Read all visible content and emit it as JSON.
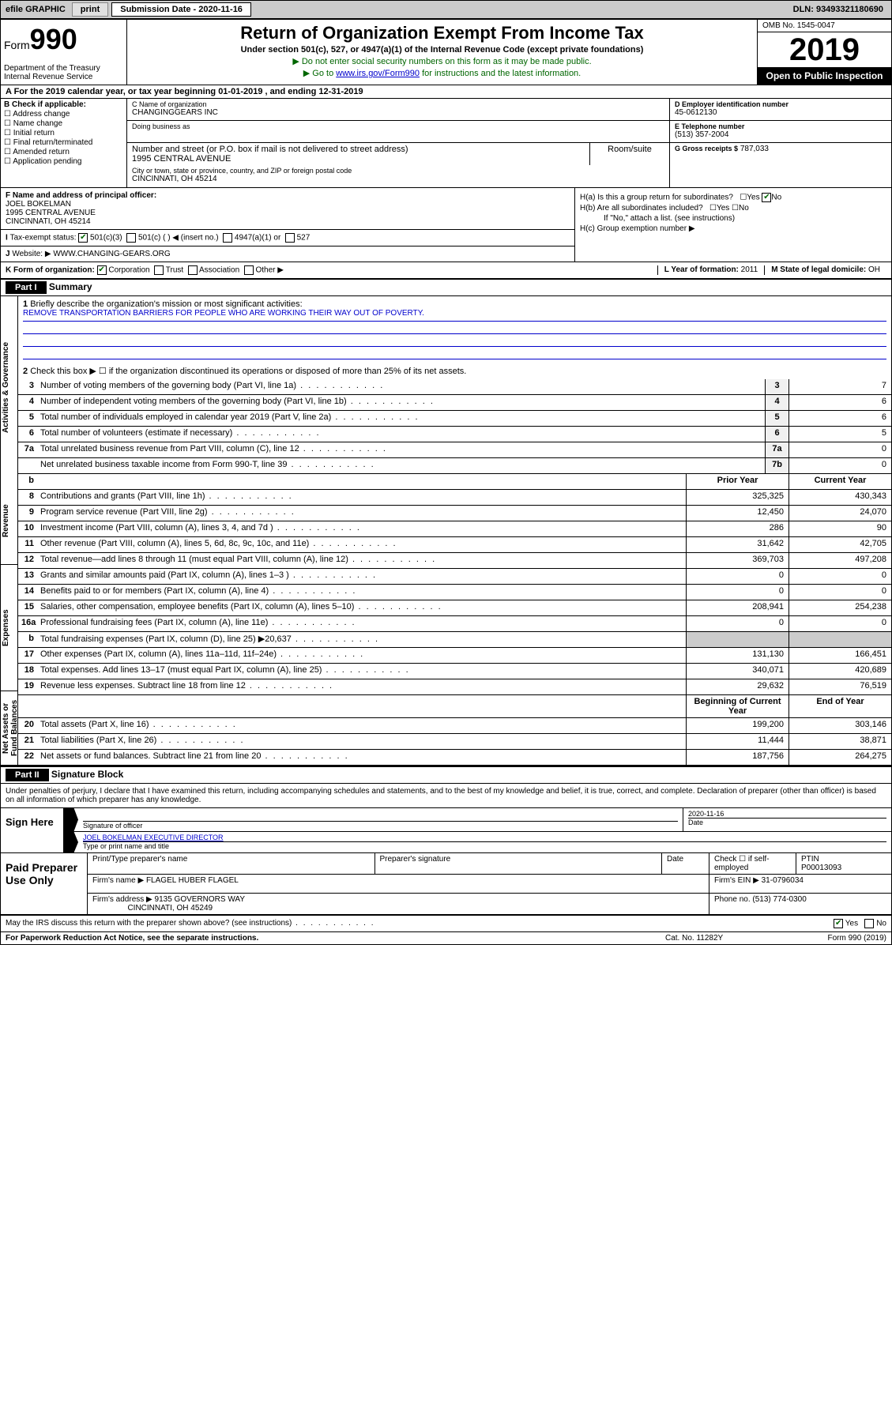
{
  "topbar": {
    "efile": "efile GRAPHIC",
    "print": "print",
    "subdate_lbl": "Submission Date - 2020-11-16",
    "dln": "DLN: 93493321180690"
  },
  "header": {
    "form_word": "Form",
    "form_num": "990",
    "dept": "Department of the Treasury\nInternal Revenue Service",
    "title": "Return of Organization Exempt From Income Tax",
    "sub": "Under section 501(c), 527, or 4947(a)(1) of the Internal Revenue Code (except private foundations)",
    "line1": "▶ Do not enter social security numbers on this form as it may be made public.",
    "line2_pre": "▶ Go to ",
    "line2_link": "www.irs.gov/Form990",
    "line2_post": " for instructions and the latest information.",
    "omb": "OMB No. 1545-0047",
    "year": "2019",
    "open": "Open to Public Inspection"
  },
  "a_line": "A For the 2019 calendar year, or tax year beginning 01-01-2019   , and ending 12-31-2019",
  "b": {
    "lbl": "B Check if applicable:",
    "opts": [
      "Address change",
      "Name change",
      "Initial return",
      "Final return/terminated",
      "Amended return",
      "Application pending"
    ]
  },
  "c": {
    "name_lbl": "C Name of organization",
    "name": "CHANGINGGEARS INC",
    "dba_lbl": "Doing business as",
    "addr_lbl": "Number and street (or P.O. box if mail is not delivered to street address)",
    "addr": "1995 CENTRAL AVENUE",
    "room_lbl": "Room/suite",
    "city_lbl": "City or town, state or province, country, and ZIP or foreign postal code",
    "city": "CINCINNATI, OH  45214"
  },
  "d": {
    "lbl": "D Employer identification number",
    "val": "45-0612130"
  },
  "e": {
    "lbl": "E Telephone number",
    "val": "(513) 357-2004"
  },
  "g": {
    "lbl": "G Gross receipts $",
    "val": "787,033"
  },
  "f": {
    "lbl": "F Name and address of principal officer:",
    "name": "JOEL BOKELMAN",
    "addr1": "1995 CENTRAL AVENUE",
    "addr2": "CINCINNATI, OH  45214"
  },
  "h": {
    "a": "H(a) Is this a group return for subordinates?",
    "b": "H(b) Are all subordinates included?",
    "b_note": "If \"No,\" attach a list. (see instructions)",
    "c": "H(c) Group exemption number ▶"
  },
  "i": {
    "lbl": "Tax-exempt status:",
    "o1": "501(c)(3)",
    "o2": "501(c) (  ) ◀ (insert no.)",
    "o3": "4947(a)(1) or",
    "o4": "527"
  },
  "j": {
    "lbl": "Website: ▶",
    "val": "WWW.CHANGING-GEARS.ORG"
  },
  "k": {
    "lbl": "K Form of organization:",
    "o1": "Corporation",
    "o2": "Trust",
    "o3": "Association",
    "o4": "Other ▶",
    "l_lbl": "L Year of formation:",
    "l_val": "2011",
    "m_lbl": "M State of legal domicile:",
    "m_val": "OH"
  },
  "part1": {
    "hdr": "Part I",
    "title": "Summary",
    "q1_lbl": "1",
    "q1": "Briefly describe the organization's mission or most significant activities:",
    "mission": "REMOVE TRANSPORTATION BARRIERS FOR PEOPLE WHO ARE WORKING THEIR WAY OUT OF POVERTY.",
    "q2_lbl": "2",
    "q2": "Check this box ▶ ☐ if the organization discontinued its operations or disposed of more than 25% of its net assets.",
    "sides": {
      "gov": "Activities & Governance",
      "rev": "Revenue",
      "exp": "Expenses",
      "net": "Net Assets or Fund Balances"
    },
    "rows_a": [
      {
        "n": "3",
        "t": "Number of voting members of the governing body (Part VI, line 1a)",
        "c": "3",
        "v": "7"
      },
      {
        "n": "4",
        "t": "Number of independent voting members of the governing body (Part VI, line 1b)",
        "c": "4",
        "v": "6"
      },
      {
        "n": "5",
        "t": "Total number of individuals employed in calendar year 2019 (Part V, line 2a)",
        "c": "5",
        "v": "6"
      },
      {
        "n": "6",
        "t": "Total number of volunteers (estimate if necessary)",
        "c": "6",
        "v": "5"
      },
      {
        "n": "7a",
        "t": "Total unrelated business revenue from Part VIII, column (C), line 12",
        "c": "7a",
        "v": "0"
      },
      {
        "n": "",
        "t": "Net unrelated business taxable income from Form 990-T, line 39",
        "c": "7b",
        "v": "0"
      }
    ],
    "col_hdr": {
      "n": "b",
      "t": "",
      "py": "Prior Year",
      "cy": "Current Year"
    },
    "rows_rev": [
      {
        "n": "8",
        "t": "Contributions and grants (Part VIII, line 1h)",
        "py": "325,325",
        "cy": "430,343"
      },
      {
        "n": "9",
        "t": "Program service revenue (Part VIII, line 2g)",
        "py": "12,450",
        "cy": "24,070"
      },
      {
        "n": "10",
        "t": "Investment income (Part VIII, column (A), lines 3, 4, and 7d )",
        "py": "286",
        "cy": "90"
      },
      {
        "n": "11",
        "t": "Other revenue (Part VIII, column (A), lines 5, 6d, 8c, 9c, 10c, and 11e)",
        "py": "31,642",
        "cy": "42,705"
      },
      {
        "n": "12",
        "t": "Total revenue—add lines 8 through 11 (must equal Part VIII, column (A), line 12)",
        "py": "369,703",
        "cy": "497,208"
      }
    ],
    "rows_exp": [
      {
        "n": "13",
        "t": "Grants and similar amounts paid (Part IX, column (A), lines 1–3 )",
        "py": "0",
        "cy": "0"
      },
      {
        "n": "14",
        "t": "Benefits paid to or for members (Part IX, column (A), line 4)",
        "py": "0",
        "cy": "0"
      },
      {
        "n": "15",
        "t": "Salaries, other compensation, employee benefits (Part IX, column (A), lines 5–10)",
        "py": "208,941",
        "cy": "254,238"
      },
      {
        "n": "16a",
        "t": "Professional fundraising fees (Part IX, column (A), line 11e)",
        "py": "0",
        "cy": "0"
      },
      {
        "n": "b",
        "t": "Total fundraising expenses (Part IX, column (D), line 25) ▶20,637",
        "py": "",
        "cy": "",
        "shade": true
      },
      {
        "n": "17",
        "t": "Other expenses (Part IX, column (A), lines 11a–11d, 11f–24e)",
        "py": "131,130",
        "cy": "166,451"
      },
      {
        "n": "18",
        "t": "Total expenses. Add lines 13–17 (must equal Part IX, column (A), line 25)",
        "py": "340,071",
        "cy": "420,689"
      },
      {
        "n": "19",
        "t": "Revenue less expenses. Subtract line 18 from line 12",
        "py": "29,632",
        "cy": "76,519"
      }
    ],
    "net_hdr": {
      "py": "Beginning of Current Year",
      "cy": "End of Year"
    },
    "rows_net": [
      {
        "n": "20",
        "t": "Total assets (Part X, line 16)",
        "py": "199,200",
        "cy": "303,146"
      },
      {
        "n": "21",
        "t": "Total liabilities (Part X, line 26)",
        "py": "11,444",
        "cy": "38,871"
      },
      {
        "n": "22",
        "t": "Net assets or fund balances. Subtract line 21 from line 20",
        "py": "187,756",
        "cy": "264,275"
      }
    ]
  },
  "part2": {
    "hdr": "Part II",
    "title": "Signature Block",
    "decl": "Under penalties of perjury, I declare that I have examined this return, including accompanying schedules and statements, and to the best of my knowledge and belief, it is true, correct, and complete. Declaration of preparer (other than officer) is based on all information of which preparer has any knowledge.",
    "sign_here": "Sign Here",
    "sig_of_officer": "Signature of officer",
    "sig_date": "2020-11-16",
    "date_lbl": "Date",
    "officer_name": "JOEL BOKELMAN  EXECUTIVE DIRECTOR",
    "type_name_lbl": "Type or print name and title",
    "paid": "Paid Preparer Use Only",
    "prep_name_lbl": "Print/Type preparer's name",
    "prep_sig_lbl": "Preparer's signature",
    "prep_date_lbl": "Date",
    "self_emp": "Check ☐ if self-employed",
    "ptin_lbl": "PTIN",
    "ptin": "P00013093",
    "firm_name_lbl": "Firm's name    ▶",
    "firm_name": "FLAGEL HUBER FLAGEL",
    "firm_ein_lbl": "Firm's EIN ▶",
    "firm_ein": "31-0796034",
    "firm_addr_lbl": "Firm's address ▶",
    "firm_addr": "9135 GOVERNORS WAY",
    "firm_city": "CINCINNATI, OH  45249",
    "phone_lbl": "Phone no.",
    "phone": "(513) 774-0300",
    "discuss": "May the IRS discuss this return with the preparer shown above? (see instructions)",
    "yes": "Yes",
    "no": "No"
  },
  "footer": {
    "pra": "For Paperwork Reduction Act Notice, see the separate instructions.",
    "cat": "Cat. No. 11282Y",
    "form": "Form 990 (2019)"
  }
}
